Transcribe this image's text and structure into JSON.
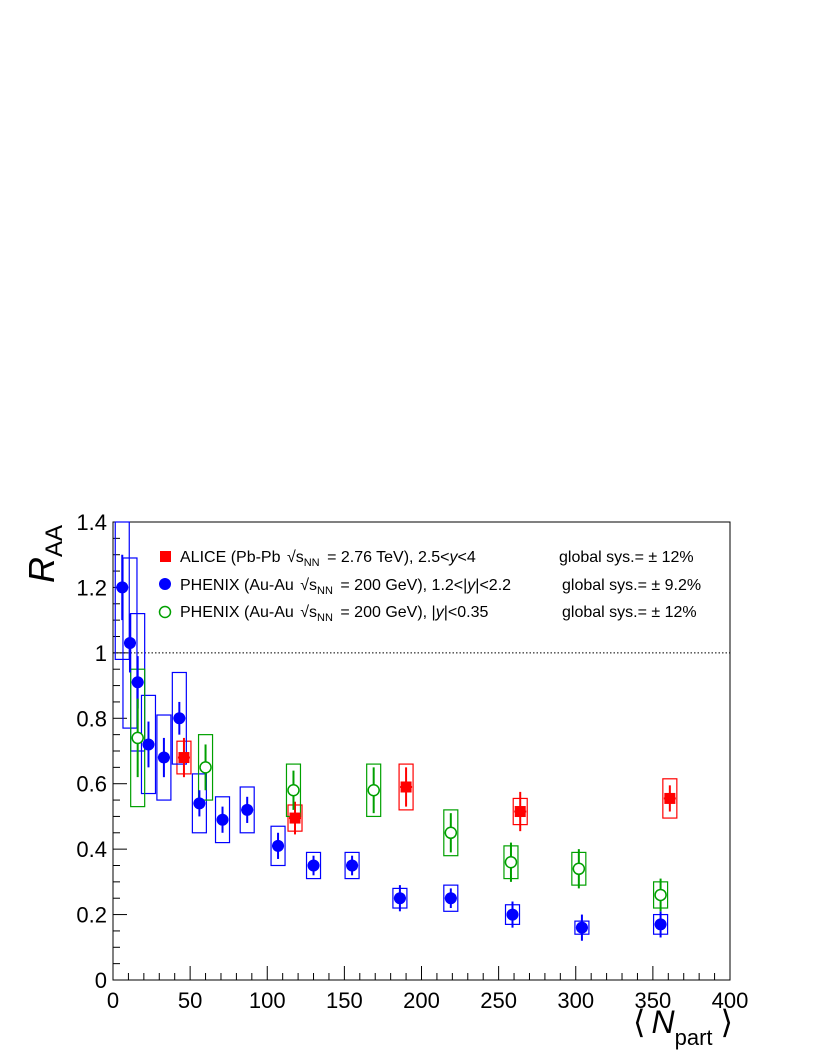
{
  "chart_data": {
    "type": "scatter",
    "ylabel": {
      "base": "R",
      "sub": "AA"
    },
    "xlabel": {
      "left": "⟨",
      "base": "N",
      "sub": "part",
      "right": "⟩"
    },
    "xlim": [
      0,
      400
    ],
    "ylim": [
      0,
      1.4
    ],
    "x_ticks": [
      0,
      50,
      100,
      150,
      200,
      250,
      300,
      350,
      400
    ],
    "y_ticks": [
      0,
      0.2,
      0.4,
      0.6,
      0.8,
      1,
      1.2,
      1.4
    ],
    "x_tick_labels": [
      "0",
      "50",
      "100",
      "150",
      "200",
      "250",
      "300",
      "350",
      "400"
    ],
    "y_tick_labels": [
      "0",
      "0.2",
      "0.4",
      "0.6",
      "0.8",
      "1",
      "1.2",
      "1.4"
    ],
    "reference_line": 1.0,
    "grid": false,
    "legend_position": "top",
    "series": [
      {
        "name": "ALICE (Pb-Pb √s_NN = 2.76 TeV), 2.5<y<4",
        "legend_prefix": "ALICE (Pb-Pb",
        "legend_sqrt": "s",
        "legend_sqrt_sub": "NN",
        "legend_suffix": "= 2.76 TeV), 2.5<",
        "legend_var": "y",
        "legend_tail": "<4",
        "global_sys": "global sys.= ± 12%",
        "color": "#ff0000",
        "marker": "filled-square",
        "points": [
          {
            "x": 46,
            "y": 0.68,
            "stat": 0.06,
            "sys": 0.05
          },
          {
            "x": 118,
            "y": 0.495,
            "stat": 0.05,
            "sys": 0.04
          },
          {
            "x": 190,
            "y": 0.59,
            "stat": 0.06,
            "sys": 0.07
          },
          {
            "x": 264,
            "y": 0.515,
            "stat": 0.06,
            "sys": 0.04
          },
          {
            "x": 361,
            "y": 0.555,
            "stat": 0.04,
            "sys": 0.06
          }
        ]
      },
      {
        "name": "PHENIX (Au-Au √s_NN = 200 GeV), 1.2<|y|<2.2",
        "legend_prefix": "PHENIX (Au-Au",
        "legend_sqrt": "s",
        "legend_sqrt_sub": "NN",
        "legend_suffix": "= 200 GeV), 1.2<|",
        "legend_var": "y",
        "legend_tail": "|<2.2",
        "global_sys": "global sys.= ± 9.2%",
        "color": "#0000ff",
        "marker": "filled-circle",
        "points": [
          {
            "x": 6,
            "y": 1.2,
            "stat": 0.1,
            "sys": 0.22
          },
          {
            "x": 11,
            "y": 1.03,
            "stat": 0.09,
            "sys": 0.26
          },
          {
            "x": 16,
            "y": 0.91,
            "stat": 0.08,
            "sys": 0.21
          },
          {
            "x": 23,
            "y": 0.72,
            "stat": 0.07,
            "sys": 0.15
          },
          {
            "x": 33,
            "y": 0.68,
            "stat": 0.06,
            "sys": 0.13
          },
          {
            "x": 43,
            "y": 0.8,
            "stat": 0.05,
            "sys": 0.14
          },
          {
            "x": 56,
            "y": 0.54,
            "stat": 0.04,
            "sys": 0.09
          },
          {
            "x": 71,
            "y": 0.49,
            "stat": 0.04,
            "sys": 0.07
          },
          {
            "x": 87,
            "y": 0.52,
            "stat": 0.04,
            "sys": 0.07
          },
          {
            "x": 107,
            "y": 0.41,
            "stat": 0.04,
            "sys": 0.06
          },
          {
            "x": 130,
            "y": 0.35,
            "stat": 0.03,
            "sys": 0.04
          },
          {
            "x": 155,
            "y": 0.35,
            "stat": 0.03,
            "sys": 0.04
          },
          {
            "x": 186,
            "y": 0.25,
            "stat": 0.04,
            "sys": 0.03
          },
          {
            "x": 219,
            "y": 0.25,
            "stat": 0.03,
            "sys": 0.04
          },
          {
            "x": 259,
            "y": 0.2,
            "stat": 0.04,
            "sys": 0.03
          },
          {
            "x": 304,
            "y": 0.16,
            "stat": 0.04,
            "sys": 0.02
          },
          {
            "x": 355,
            "y": 0.17,
            "stat": 0.04,
            "sys": 0.03
          }
        ]
      },
      {
        "name": "PHENIX (Au-Au √s_NN = 200 GeV), |y|<0.35",
        "legend_prefix": "PHENIX (Au-Au",
        "legend_sqrt": "s",
        "legend_sqrt_sub": "NN",
        "legend_suffix": "= 200 GeV), |",
        "legend_var": "y",
        "legend_tail": "|<0.35",
        "global_sys": "global sys.= ± 12%",
        "color": "#00a000",
        "marker": "open-circle",
        "points": [
          {
            "x": 16,
            "y": 0.74,
            "stat": 0.12,
            "sys": 0.21
          },
          {
            "x": 60,
            "y": 0.65,
            "stat": 0.07,
            "sys": 0.1
          },
          {
            "x": 117,
            "y": 0.58,
            "stat": 0.06,
            "sys": 0.08
          },
          {
            "x": 169,
            "y": 0.58,
            "stat": 0.07,
            "sys": 0.08
          },
          {
            "x": 219,
            "y": 0.45,
            "stat": 0.06,
            "sys": 0.07
          },
          {
            "x": 258,
            "y": 0.36,
            "stat": 0.06,
            "sys": 0.05
          },
          {
            "x": 302,
            "y": 0.34,
            "stat": 0.06,
            "sys": 0.05
          },
          {
            "x": 355,
            "y": 0.26,
            "stat": 0.05,
            "sys": 0.04
          }
        ]
      }
    ]
  }
}
